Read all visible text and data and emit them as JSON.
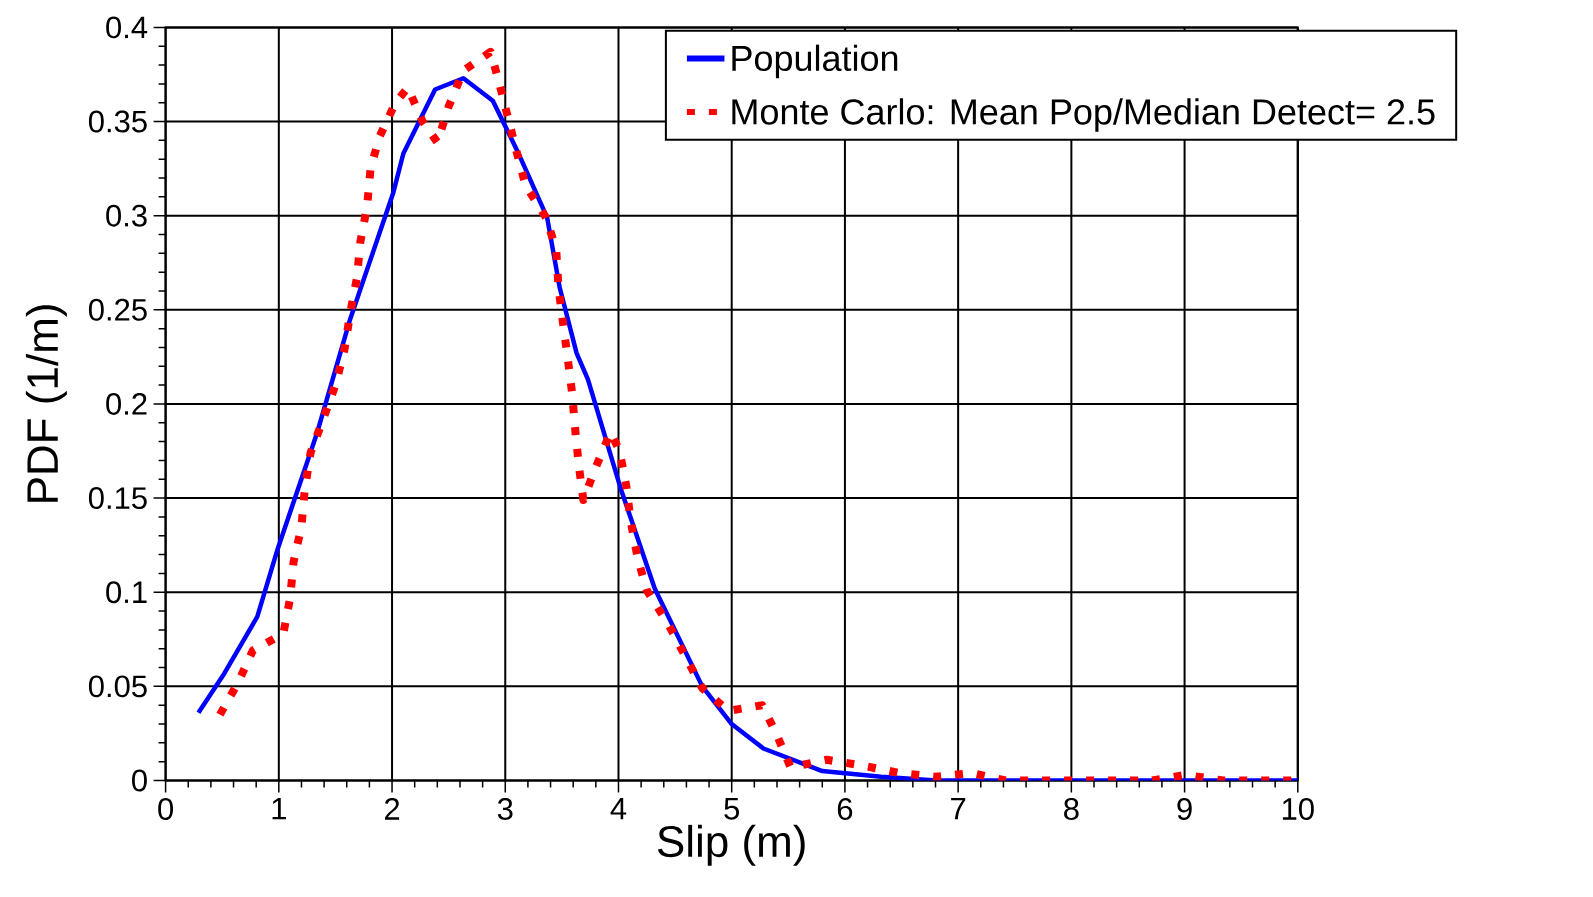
{
  "chart_data": {
    "type": "line",
    "xlabel": "Slip (m)",
    "ylabel": "PDF (1/m)",
    "xlim": [
      0,
      10
    ],
    "ylim": [
      0,
      0.4
    ],
    "xticks": [
      0,
      1,
      2,
      3,
      4,
      5,
      6,
      7,
      8,
      9,
      10
    ],
    "yticks": [
      0,
      0.05,
      0.1,
      0.15,
      0.2,
      0.25,
      0.3,
      0.35,
      0.4
    ],
    "grid": true,
    "legend": "top right",
    "marker": "none",
    "series": [
      {
        "name": "Population",
        "color": "#0000ff",
        "line_style": "solid",
        "x": [
          0.29,
          0.52,
          0.81,
          0.99,
          1.34,
          1.63,
          2.01,
          2.1,
          2.38,
          2.63,
          2.89,
          3.11,
          3.37,
          3.48,
          3.63,
          3.73,
          4.02,
          4.32,
          4.74,
          5.0,
          5.28,
          5.8,
          6.32,
          6.81,
          7.5,
          8,
          9,
          10
        ],
        "values": [
          0.036,
          0.057,
          0.087,
          0.123,
          0.185,
          0.245,
          0.312,
          0.333,
          0.367,
          0.373,
          0.361,
          0.334,
          0.299,
          0.262,
          0.227,
          0.213,
          0.155,
          0.102,
          0.05,
          0.03,
          0.017,
          0.005,
          0.002,
          0,
          0,
          0,
          0,
          0
        ]
      },
      {
        "name": "Monte Carlo: Mean Pop/Median Detect= 2.5",
        "color": "#ff0000",
        "line_style": "dotted",
        "x": [
          0.48,
          0.64,
          0.77,
          1.04,
          1.1,
          1.13,
          1.2,
          1.23,
          1.28,
          1.38,
          1.5,
          1.58,
          1.63,
          1.69,
          1.72,
          1.78,
          1.81,
          1.89,
          2.03,
          2.14,
          2.27,
          2.4,
          2.5,
          2.63,
          2.87,
          2.94,
          3.02,
          3.1,
          3.18,
          3.36,
          3.45,
          3.47,
          3.51,
          3.55,
          3.59,
          3.62,
          3.65,
          3.69,
          3.79,
          3.93,
          4.01,
          4.07,
          4.11,
          4.17,
          4.25,
          4.44,
          4.59,
          4.74,
          4.97,
          5.27,
          5.4,
          5.52,
          5.84,
          6.15,
          6.48,
          6.8,
          7.12,
          7.42,
          7.74,
          8.07,
          8.39,
          8.71,
          9.01,
          9.34,
          9.65,
          9.97
        ],
        "values": [
          0.035,
          0.052,
          0.069,
          0.078,
          0.097,
          0.116,
          0.135,
          0.155,
          0.174,
          0.19,
          0.21,
          0.229,
          0.248,
          0.267,
          0.286,
          0.305,
          0.325,
          0.342,
          0.36,
          0.368,
          0.35,
          0.339,
          0.358,
          0.377,
          0.387,
          0.372,
          0.353,
          0.334,
          0.316,
          0.299,
          0.282,
          0.262,
          0.243,
          0.225,
          0.206,
          0.185,
          0.167,
          0.149,
          0.165,
          0.185,
          0.175,
          0.156,
          0.137,
          0.118,
          0.101,
          0.083,
          0.066,
          0.049,
          0.037,
          0.04,
          0.024,
          0.007,
          0.011,
          0.008,
          0.004,
          0.002,
          0.004,
          0,
          0,
          0,
          0,
          0,
          0.003,
          0,
          0,
          0
        ]
      }
    ]
  }
}
